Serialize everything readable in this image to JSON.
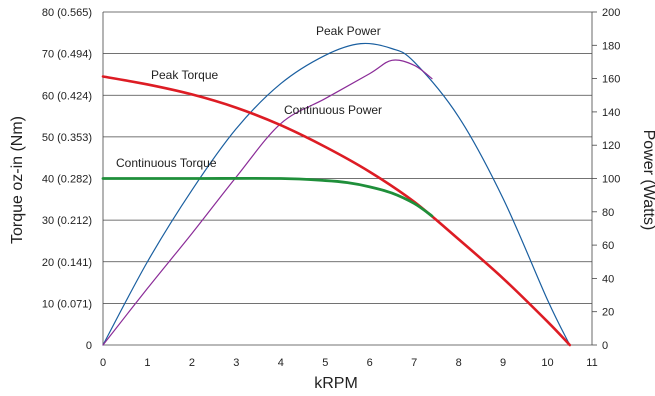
{
  "chart_data": {
    "type": "line",
    "x": {
      "label": "kRPM",
      "range": [
        0,
        11
      ],
      "ticks": [
        "0",
        "1",
        "2",
        "3",
        "4",
        "5",
        "6",
        "7",
        "8",
        "9",
        "10",
        "11"
      ]
    },
    "y_left": {
      "label": "Torque oz-in (Nm)",
      "range": [
        0,
        80
      ],
      "ticks": [
        {
          "value": 0,
          "label": "0"
        },
        {
          "value": 10,
          "label": "10 (0.071)"
        },
        {
          "value": 20,
          "label": "20 (0.141)"
        },
        {
          "value": 30,
          "label": "30 (0.212)"
        },
        {
          "value": 40,
          "label": "40 (0.282)"
        },
        {
          "value": 50,
          "label": "50 (0.353)"
        },
        {
          "value": 60,
          "label": "60 (0.424)"
        },
        {
          "value": 70,
          "label": "70 (0.494)"
        },
        {
          "value": 80,
          "label": "80 (0.565)"
        }
      ]
    },
    "y_right": {
      "label": "Power (Watts)",
      "range": [
        0,
        200
      ],
      "ticks": [
        "0",
        "20",
        "40",
        "60",
        "80",
        "100",
        "120",
        "140",
        "160",
        "180",
        "200"
      ]
    },
    "grid": "horizontal",
    "series": [
      {
        "name": "Peak Torque",
        "axis": "left",
        "color": "#dd1c24",
        "points": [
          [
            0,
            64.5
          ],
          [
            1,
            62.6
          ],
          [
            2,
            60.2
          ],
          [
            3,
            57.0
          ],
          [
            4,
            52.8
          ],
          [
            5,
            47.6
          ],
          [
            6,
            41.6
          ],
          [
            7,
            34.4
          ],
          [
            8,
            25.4
          ],
          [
            9,
            16.0
          ],
          [
            10,
            5.6
          ],
          [
            10.5,
            0
          ]
        ]
      },
      {
        "name": "Continuous Torque",
        "axis": "left",
        "color": "#1f8f3a",
        "points": [
          [
            0,
            40.0
          ],
          [
            2,
            40.0
          ],
          [
            4,
            40.0
          ],
          [
            5,
            39.5
          ],
          [
            5.5,
            39.0
          ],
          [
            6,
            38.0
          ],
          [
            6.5,
            36.5
          ],
          [
            7,
            34.0
          ],
          [
            7.4,
            31.0
          ]
        ]
      },
      {
        "name": "Peak Power",
        "axis": "right",
        "color": "#1a5fa0",
        "points": [
          [
            0,
            0
          ],
          [
            1,
            50
          ],
          [
            2,
            93
          ],
          [
            3,
            130
          ],
          [
            4,
            157
          ],
          [
            5,
            174
          ],
          [
            5.8,
            181
          ],
          [
            6.5,
            178
          ],
          [
            7,
            170
          ],
          [
            8,
            137
          ],
          [
            9,
            88
          ],
          [
            10,
            27
          ],
          [
            10.5,
            0
          ]
        ]
      },
      {
        "name": "Continuous Power",
        "axis": "right",
        "color": "#8b2c98",
        "points": [
          [
            0,
            0
          ],
          [
            1,
            34
          ],
          [
            2,
            67
          ],
          [
            3,
            101
          ],
          [
            4,
            133
          ],
          [
            5,
            148
          ],
          [
            6,
            163
          ],
          [
            6.5,
            171
          ],
          [
            7,
            168
          ],
          [
            7.4,
            160
          ]
        ]
      }
    ]
  }
}
